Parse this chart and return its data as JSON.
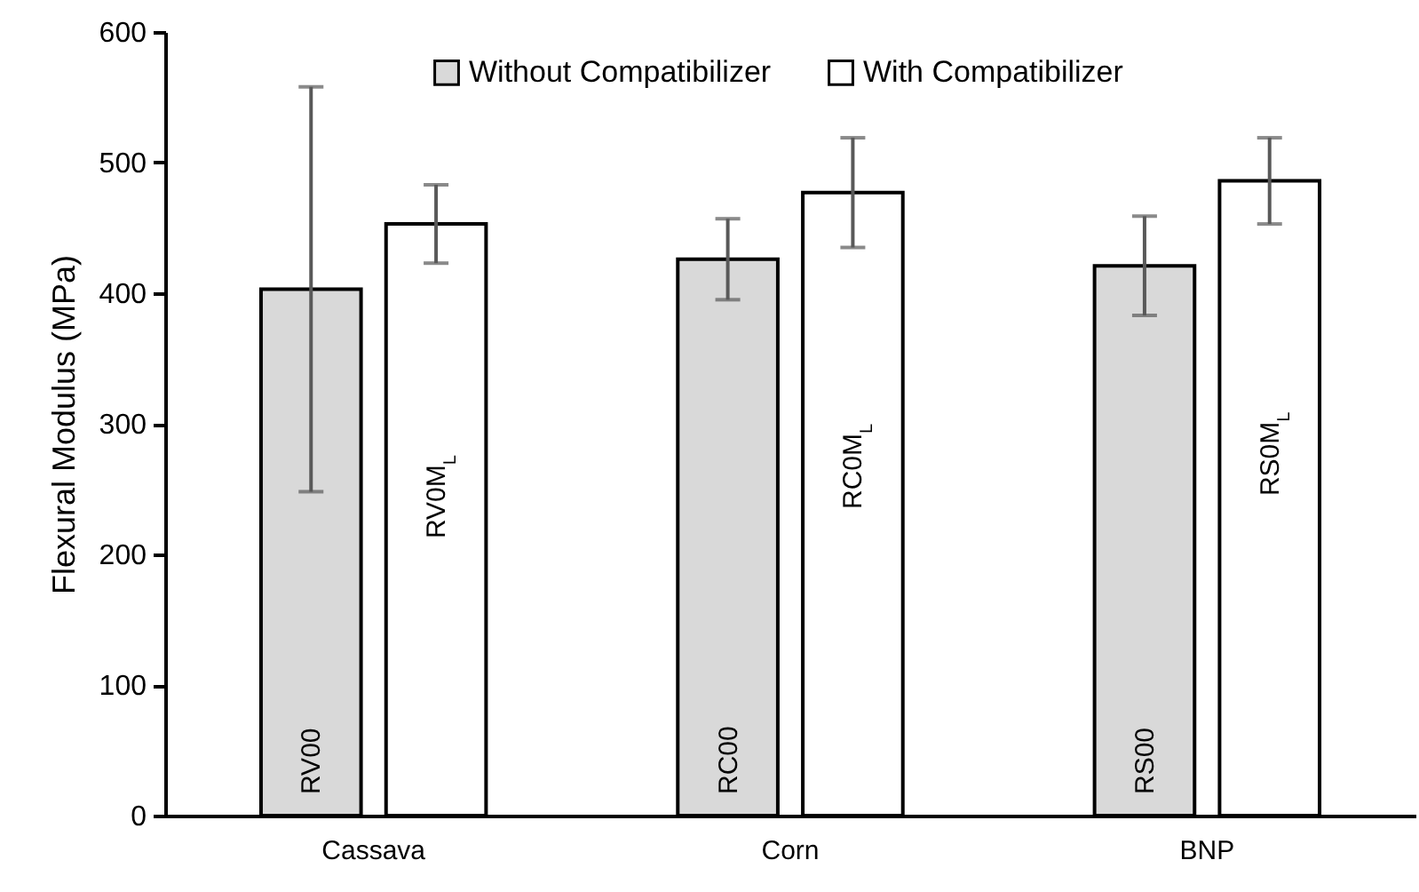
{
  "chart_data": {
    "type": "bar",
    "ylabel": "Flexural Modulus (MPa)",
    "categories": [
      "Cassava",
      "Corn",
      "BNP"
    ],
    "series": [
      {
        "name": "Without Compatibilizer",
        "color": "#d9d9d9",
        "values": [
          403,
          426,
          421
        ],
        "errors": [
          155,
          31,
          38
        ],
        "value_labels": [
          "RV00",
          "RC00",
          "RS00"
        ]
      },
      {
        "name": "With Compatibilizer",
        "color": "#ffffff",
        "values": [
          453,
          477,
          486
        ],
        "errors": [
          30,
          42,
          33
        ],
        "value_labels": [
          "RV0M$_{L}$",
          "RC0M$_{L}$",
          "RS0M$_{L}$"
        ]
      }
    ],
    "ylim": [
      0,
      600
    ],
    "yticks": [
      0,
      100,
      200,
      300,
      400,
      500,
      600
    ],
    "grid": false,
    "legend": "top"
  }
}
